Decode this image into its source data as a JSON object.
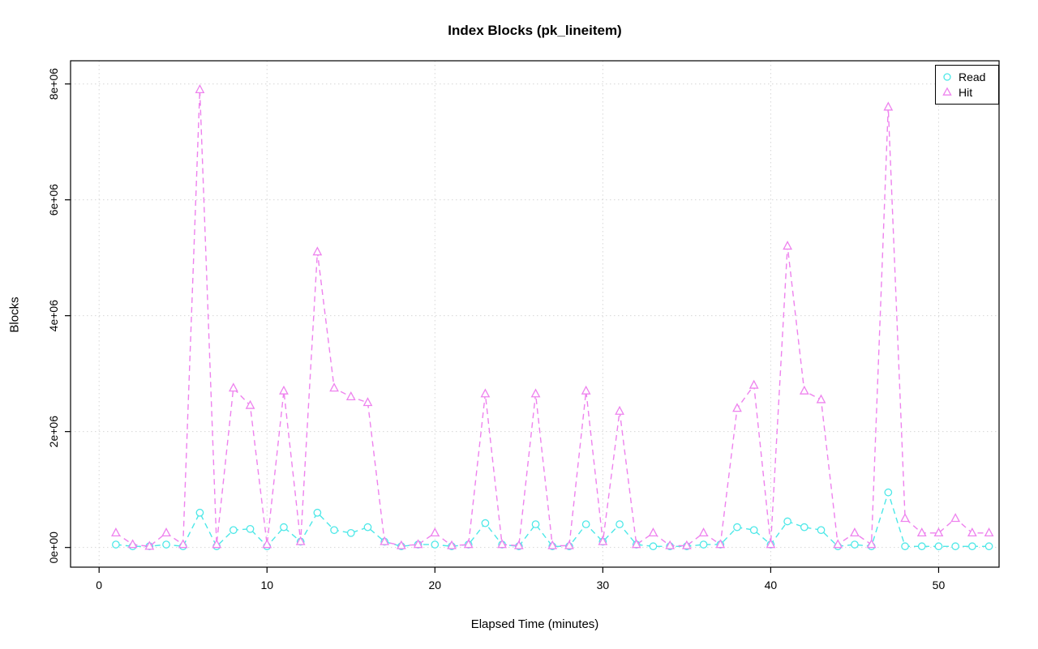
{
  "chart_data": {
    "type": "line",
    "title": "Index Blocks (pk_lineitem)",
    "xlabel": "Elapsed Time (minutes)",
    "ylabel": "Blocks",
    "grid": true,
    "legend_position": "top-right",
    "xlim": [
      -1.7,
      53.6
    ],
    "ylim": [
      -340000,
      8400000
    ],
    "x_ticks": [
      0,
      10,
      20,
      30,
      40,
      50
    ],
    "y_ticks": [
      0,
      2000000,
      4000000,
      6000000,
      8000000
    ],
    "y_tick_labels": [
      "0e+00",
      "2e+06",
      "4e+06",
      "6e+06",
      "8e+06"
    ],
    "x": [
      1,
      2,
      3,
      4,
      5,
      6,
      7,
      8,
      9,
      10,
      11,
      12,
      13,
      14,
      15,
      16,
      17,
      18,
      19,
      20,
      21,
      22,
      23,
      24,
      25,
      26,
      27,
      28,
      29,
      30,
      31,
      32,
      33,
      34,
      35,
      36,
      37,
      38,
      39,
      40,
      41,
      42,
      43,
      44,
      45,
      46,
      47,
      48,
      49,
      50,
      51,
      52,
      53
    ],
    "series": [
      {
        "name": "Read",
        "color": "#4DE8E8",
        "marker": "circle",
        "values": [
          50000,
          20000,
          20000,
          50000,
          20000,
          600000,
          20000,
          300000,
          320000,
          20000,
          350000,
          100000,
          600000,
          300000,
          250000,
          350000,
          100000,
          20000,
          50000,
          50000,
          20000,
          50000,
          420000,
          50000,
          20000,
          400000,
          20000,
          20000,
          400000,
          100000,
          400000,
          50000,
          20000,
          20000,
          20000,
          50000,
          50000,
          350000,
          300000,
          50000,
          450000,
          350000,
          300000,
          20000,
          50000,
          20000,
          950000,
          20000,
          20000,
          20000,
          20000,
          20000,
          20000
        ]
      },
      {
        "name": "Hit",
        "color": "#EE82EE",
        "marker": "triangle",
        "values": [
          250000,
          50000,
          20000,
          250000,
          50000,
          7900000,
          50000,
          2750000,
          2450000,
          50000,
          2700000,
          100000,
          5100000,
          2750000,
          2600000,
          2500000,
          100000,
          30000,
          50000,
          250000,
          30000,
          50000,
          2650000,
          50000,
          30000,
          2650000,
          30000,
          30000,
          2700000,
          100000,
          2350000,
          50000,
          250000,
          30000,
          30000,
          250000,
          50000,
          2400000,
          2800000,
          50000,
          5200000,
          2700000,
          2550000,
          50000,
          250000,
          50000,
          7600000,
          500000,
          250000,
          250000,
          500000,
          250000,
          250000
        ]
      }
    ]
  }
}
